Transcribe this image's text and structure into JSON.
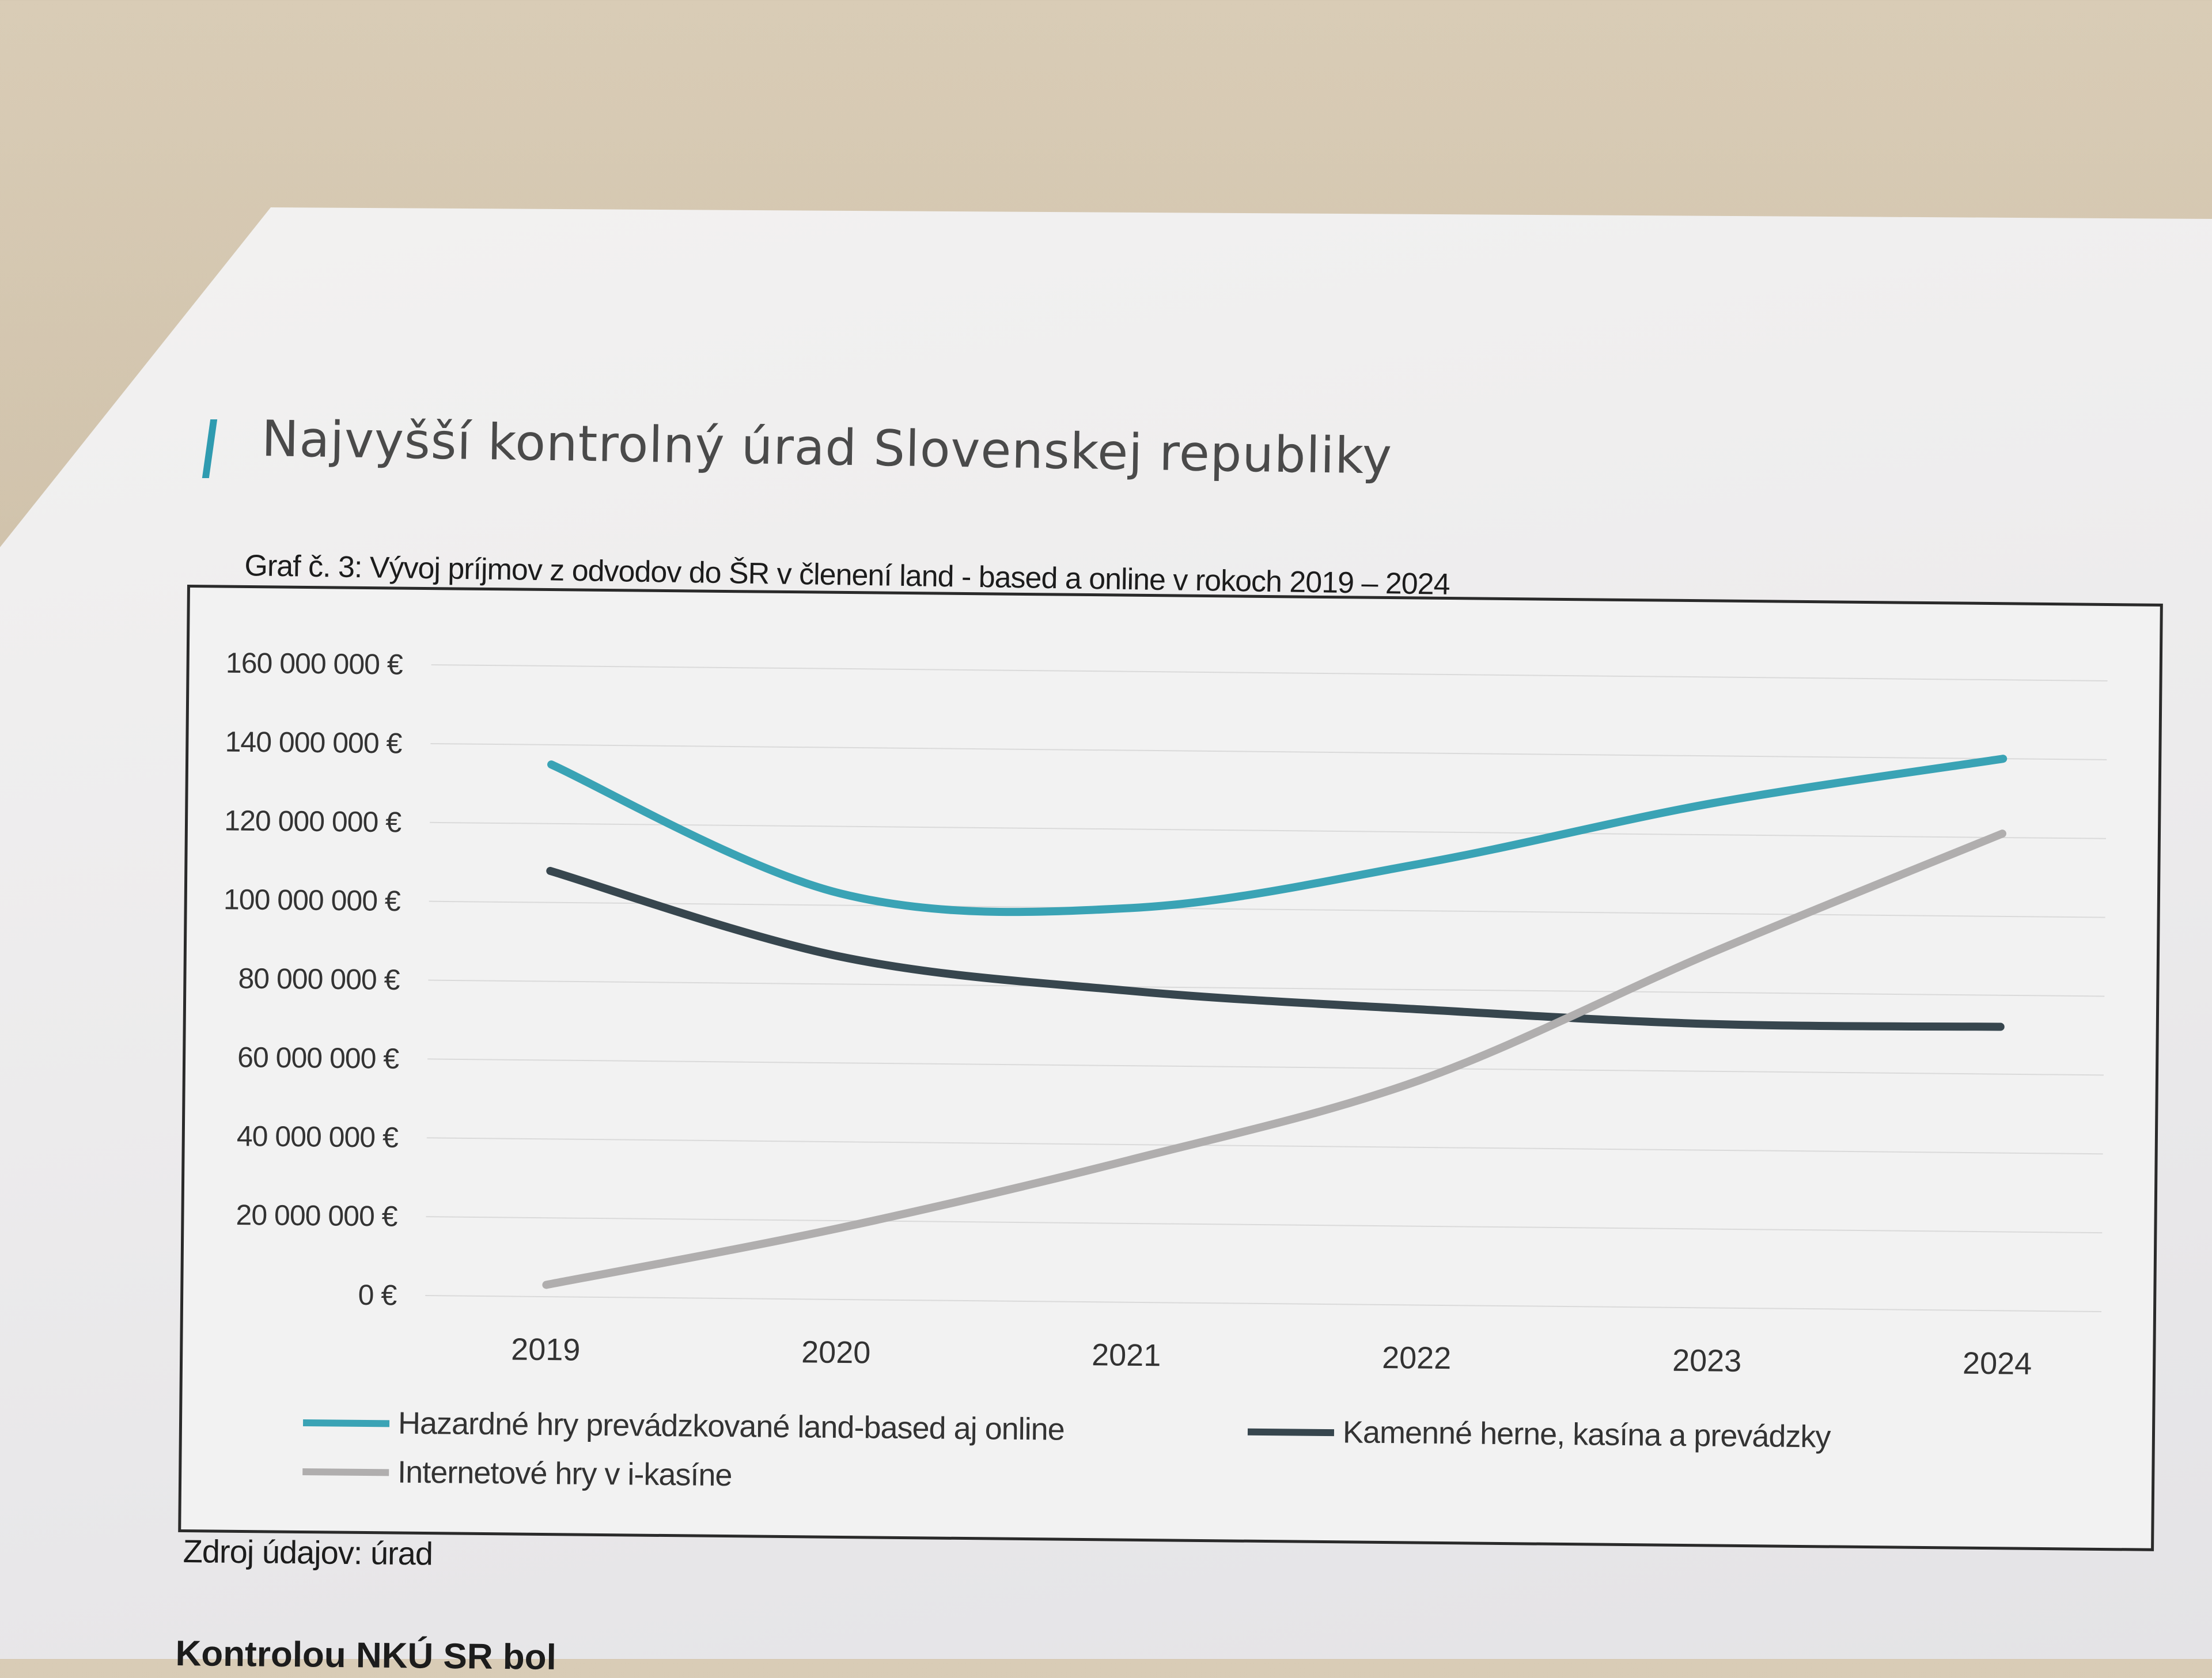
{
  "header": {
    "title": "Najvyšší kontrolný úrad Slovenskej republiky"
  },
  "caption": "Graf č. 3: Vývoj príjmov z odvodov do ŠR v členení land - based a online v rokoch 2019 – 2024",
  "source": "Zdroj údajov: úrad",
  "body_text": "Kontrolou NKÚ SR bol",
  "colors": {
    "accent": "#2f9bb0"
  },
  "chart_data": {
    "type": "line",
    "title": "Graf č. 3: Vývoj príjmov z odvodov do ŠR v členení land - based a online v rokoch 2019 – 2024",
    "xlabel": "",
    "ylabel": "",
    "categories": [
      "2019",
      "2020",
      "2021",
      "2022",
      "2023",
      "2024"
    ],
    "ylim": [
      0,
      160000000
    ],
    "yticks": [
      "0 €",
      "20 000 000 €",
      "40 000 000 €",
      "60 000 000 €",
      "80 000 000 €",
      "100 000 000 €",
      "120 000 000 €",
      "140 000 000 €",
      "160 000 000 €"
    ],
    "grid": true,
    "legend_position": "bottom",
    "series": [
      {
        "name": "Hazardné hry prevádzkované land-based aj online",
        "color": "#3aa3b5",
        "values": [
          135000000,
          103000000,
          100000000,
          112000000,
          128000000,
          140000000
        ]
      },
      {
        "name": "Kamenné herne, kasína a prevádzky",
        "color": "#37464e",
        "values": [
          108000000,
          87000000,
          79000000,
          75000000,
          72000000,
          72000000
        ]
      },
      {
        "name": "Internetové hry v i-kasíne",
        "color": "#b0aeae",
        "values": [
          3000000,
          18000000,
          36000000,
          57000000,
          90000000,
          121000000
        ]
      }
    ]
  }
}
